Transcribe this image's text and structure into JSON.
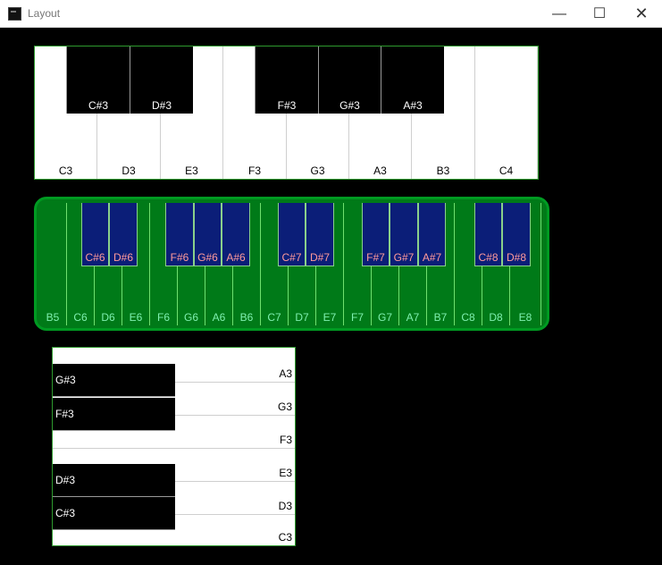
{
  "window": {
    "title": "Layout",
    "minimize": "—",
    "maximize": "☐",
    "close": "✕"
  },
  "keyboard1": {
    "white_keys": [
      "C3",
      "D3",
      "E3",
      "F3",
      "G3",
      "A3",
      "B3",
      "C4"
    ],
    "black_keys": [
      "C#3",
      "D#3",
      "F#3",
      "G#3",
      "A#3"
    ]
  },
  "keyboard2": {
    "white_keys": [
      "B5",
      "C6",
      "D6",
      "E6",
      "F6",
      "G6",
      "A6",
      "B6",
      "C7",
      "D7",
      "E7",
      "F7",
      "G7",
      "A7",
      "B7",
      "C8",
      "D8",
      "E8"
    ],
    "black_keys": [
      "C#6",
      "D#6",
      "F#6",
      "G#6",
      "A#6",
      "C#7",
      "D#7",
      "F#7",
      "G#7",
      "A#7",
      "C#8",
      "D#8"
    ]
  },
  "keyboard3": {
    "white_keys": [
      "A3",
      "G3",
      "F3",
      "E3",
      "D3",
      "C3"
    ],
    "black_keys": [
      "G#3",
      "F#3",
      "D#3",
      "C#3"
    ]
  },
  "colors": {
    "kb2_background": "#007a18",
    "kb2_black_key": "#0b1e78",
    "kb2_white_label": "#7ff0b0",
    "kb2_black_label": "#ff9a9a"
  }
}
